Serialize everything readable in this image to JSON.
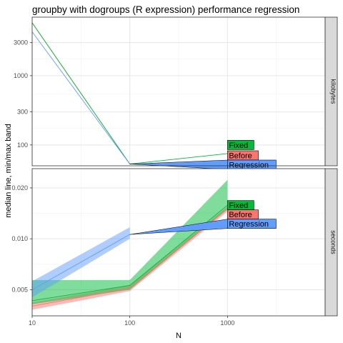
{
  "chart_data": {
    "type": "line",
    "title": "groupby with dogroups (R expression) performance regression",
    "xlabel": "N",
    "ylabel": "median line, min/max band",
    "x_scale": "log10",
    "y_scale": "log10",
    "xlim": [
      10,
      10000
    ],
    "x_ticks": [
      "10",
      "100",
      "1000"
    ],
    "colors": {
      "Before": "#F8766D",
      "Fixed": "#00BA38",
      "Regression": "#619CFF"
    },
    "grid": true,
    "legend": "direct labels at right end of each line",
    "facets": [
      {
        "strip": "kilobytes",
        "ylim": [
          50,
          7000
        ],
        "y_ticks": [
          "100",
          "300",
          "1000",
          "3000"
        ],
        "series": [
          {
            "name": "Before",
            "x": [
              10,
              100,
              1000
            ],
            "median": [
              5800,
              53,
              53
            ],
            "min": [
              5800,
              53,
              53
            ],
            "max": [
              5800,
              53,
              53
            ]
          },
          {
            "name": "Fixed",
            "x": [
              10,
              100,
              1000
            ],
            "median": [
              5800,
              53,
              75
            ],
            "min": [
              5800,
              53,
              75
            ],
            "max": [
              5800,
              53,
              75
            ]
          },
          {
            "name": "Regression",
            "x": [
              10,
              100
            ],
            "median": [
              4300,
              53
            ],
            "min": [
              4300,
              53
            ],
            "max": [
              4300,
              53
            ]
          }
        ]
      },
      {
        "strip": "seconds",
        "ylim": [
          0.0035,
          0.026
        ],
        "y_ticks": [
          "0.005",
          "0.010",
          "0.020"
        ],
        "series": [
          {
            "name": "Before",
            "x": [
              10,
              100,
              1000
            ],
            "median": [
              0.004,
              0.0051,
              0.015
            ],
            "min": [
              0.0038,
              0.0049,
              0.0145
            ],
            "max": [
              0.0042,
              0.0053,
              0.0155
            ]
          },
          {
            "name": "Fixed",
            "x": [
              10,
              100,
              1000
            ],
            "median": [
              0.0043,
              0.0053,
              0.0158
            ],
            "min": [
              0.0041,
              0.005,
              0.015
            ],
            "max": [
              0.0057,
              0.0057,
              0.0223
            ]
          },
          {
            "name": "Regression",
            "x": [
              10,
              100
            ],
            "median": [
              0.005,
              0.0106
            ],
            "min": [
              0.0045,
              0.01
            ],
            "max": [
              0.0056,
              0.0117
            ]
          }
        ]
      }
    ]
  }
}
